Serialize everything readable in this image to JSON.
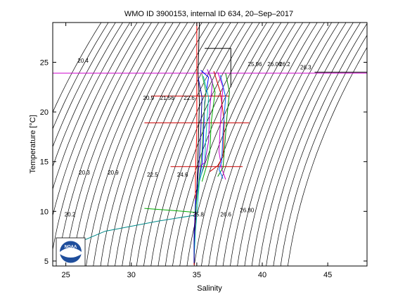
{
  "chart_data": {
    "type": "line",
    "title": "WMO ID 3900153, internal ID 634, 20–Sep–2017",
    "xlabel": "Salinity",
    "ylabel": "Temperature [°C]",
    "xlim": [
      24,
      48
    ],
    "ylim": [
      4.5,
      29
    ],
    "xticks": [
      "25",
      "30",
      "35",
      "40",
      "45"
    ],
    "yticks": [
      "5",
      "10",
      "15",
      "20",
      "25"
    ],
    "grid": false,
    "legend": "none",
    "contour_labels": [
      {
        "text": "20.4",
        "s": 25.9,
        "t": 24.95
      },
      {
        "text": "20.9",
        "s": 30.9,
        "t": 21.2
      },
      {
        "text": "21.56",
        "s": 32.2,
        "t": 21.2
      },
      {
        "text": "22.6",
        "s": 34.0,
        "t": 21.2
      },
      {
        "text": "25.96",
        "s": 38.9,
        "t": 24.6
      },
      {
        "text": "26.08",
        "s": 40.4,
        "t": 24.6
      },
      {
        "text": "26.2",
        "s": 41.3,
        "t": 24.6
      },
      {
        "text": "26.3",
        "s": 42.9,
        "t": 24.3
      },
      {
        "text": "20.3",
        "s": 26.0,
        "t": 13.7
      },
      {
        "text": "20.9",
        "s": 28.2,
        "t": 13.7
      },
      {
        "text": "22.5",
        "s": 31.2,
        "t": 13.5
      },
      {
        "text": "24.6",
        "s": 33.5,
        "t": 13.5
      },
      {
        "text": "20.2",
        "s": 24.9,
        "t": 9.5
      },
      {
        "text": "25.8",
        "s": 34.7,
        "t": 9.5
      },
      {
        "text": "26.6",
        "s": 36.8,
        "t": 9.5
      },
      {
        "text": "26.80",
        "s": 38.3,
        "t": 9.9
      }
    ],
    "reference_lines": [
      {
        "name": "",
        "color": "#cc00cc",
        "points": [
          [
            24.0,
            23.9
          ],
          [
            48.0,
            23.9
          ]
        ]
      },
      {
        "name": "",
        "color": "#000000",
        "points": [
          [
            44.0,
            24.0
          ],
          [
            48.0,
            24.0
          ]
        ]
      },
      {
        "name": "",
        "color": "#cc0000",
        "points": [
          [
            31.5,
            21.6
          ],
          [
            37.5,
            21.6
          ]
        ]
      },
      {
        "name": "",
        "color": "#cc0000",
        "points": [
          [
            31.0,
            18.9
          ],
          [
            39.0,
            18.9
          ]
        ]
      },
      {
        "name": "",
        "color": "#cc0000",
        "points": [
          [
            33.0,
            14.5
          ],
          [
            38.5,
            14.5
          ]
        ]
      }
    ],
    "series": [
      {
        "color": "#000000",
        "points": [
          [
            35.6,
            26.4
          ],
          [
            37.6,
            26.4
          ],
          [
            37.6,
            22.5
          ]
        ]
      },
      {
        "color": "#000000",
        "points": [
          [
            35.2,
            29.0
          ],
          [
            35.1,
            24.0
          ],
          [
            35.2,
            21.0
          ],
          [
            35.1,
            16.0
          ],
          [
            35.0,
            12.0
          ],
          [
            34.9,
            9.0
          ],
          [
            34.8,
            6.0
          ],
          [
            34.8,
            4.6
          ]
        ]
      },
      {
        "color": "#ff0000",
        "points": [
          [
            35.0,
            29.0
          ],
          [
            35.0,
            24.0
          ],
          [
            35.0,
            18.0
          ],
          [
            34.9,
            14.0
          ],
          [
            34.9,
            10.0
          ],
          [
            34.8,
            6.0
          ],
          [
            34.8,
            4.6
          ]
        ]
      },
      {
        "color": "#0000ff",
        "points": [
          [
            35.3,
            24.2
          ],
          [
            35.9,
            23.5
          ],
          [
            35.6,
            21.0
          ],
          [
            35.5,
            17.0
          ],
          [
            35.4,
            14.8
          ],
          [
            34.9,
            11.0
          ],
          [
            34.8,
            7.0
          ],
          [
            34.8,
            5.0
          ]
        ]
      },
      {
        "color": "#00aa00",
        "points": [
          [
            36.0,
            23.8
          ],
          [
            36.4,
            22.0
          ],
          [
            36.1,
            19.0
          ],
          [
            36.0,
            16.0
          ],
          [
            35.8,
            14.8
          ],
          [
            35.4,
            13.0
          ]
        ]
      },
      {
        "color": "#cc00cc",
        "points": [
          [
            36.6,
            24.0
          ],
          [
            37.0,
            22.5
          ],
          [
            36.8,
            19.0
          ],
          [
            36.7,
            16.0
          ],
          [
            36.9,
            14.3
          ],
          [
            37.2,
            13.2
          ]
        ]
      },
      {
        "color": "#00bbbb",
        "points": [
          [
            35.5,
            23.6
          ],
          [
            35.9,
            21.5
          ],
          [
            35.7,
            17.5
          ],
          [
            35.6,
            15.0
          ],
          [
            35.2,
            13.0
          ],
          [
            34.9,
            8.0
          ],
          [
            34.8,
            5.5
          ]
        ]
      },
      {
        "color": "#cc0000",
        "points": [
          [
            36.3,
            24.1
          ],
          [
            36.8,
            22.0
          ],
          [
            37.1,
            19.0
          ],
          [
            37.0,
            15.5
          ],
          [
            36.6,
            14.6
          ],
          [
            36.0,
            14.0
          ]
        ]
      },
      {
        "color": "#000099",
        "points": [
          [
            35.1,
            23.5
          ],
          [
            35.4,
            21.5
          ],
          [
            35.3,
            18.0
          ],
          [
            35.2,
            15.3
          ],
          [
            35.0,
            12.0
          ],
          [
            34.8,
            8.0
          ],
          [
            34.8,
            4.8
          ]
        ]
      },
      {
        "color": "#008800",
        "points": [
          [
            37.2,
            23.9
          ],
          [
            37.5,
            22.0
          ],
          [
            37.3,
            19.5
          ],
          [
            37.1,
            16.0
          ],
          [
            37.0,
            14.4
          ],
          [
            36.6,
            13.5
          ]
        ]
      },
      {
        "color": "#9900cc",
        "points": [
          [
            35.8,
            24.3
          ],
          [
            36.2,
            23.0
          ],
          [
            36.0,
            20.5
          ],
          [
            35.9,
            17.0
          ],
          [
            35.6,
            14.9
          ],
          [
            35.2,
            14.5
          ]
        ]
      },
      {
        "color": "#0066ff",
        "points": [
          [
            36.8,
            23.7
          ],
          [
            37.2,
            21.5
          ],
          [
            37.0,
            18.0
          ],
          [
            36.9,
            15.0
          ],
          [
            36.7,
            14.2
          ],
          [
            37.0,
            13.3
          ]
        ]
      },
      {
        "color": "#33aa33",
        "points": [
          [
            35.4,
            23.8
          ],
          [
            35.7,
            22.0
          ],
          [
            35.5,
            19.0
          ],
          [
            35.4,
            16.0
          ],
          [
            35.3,
            14.7
          ],
          [
            34.9,
            10.0
          ]
        ]
      },
      {
        "color": "#008888",
        "points": [
          [
            34.8,
            9.6
          ],
          [
            32.0,
            9.0
          ],
          [
            28.0,
            8.0
          ],
          [
            26.2,
            7.0
          ]
        ]
      },
      {
        "color": "#00aa00",
        "points": [
          [
            34.9,
            9.9
          ],
          [
            33.0,
            10.1
          ],
          [
            31.0,
            10.3
          ]
        ]
      }
    ]
  },
  "logo": {
    "text": "NOAA"
  }
}
